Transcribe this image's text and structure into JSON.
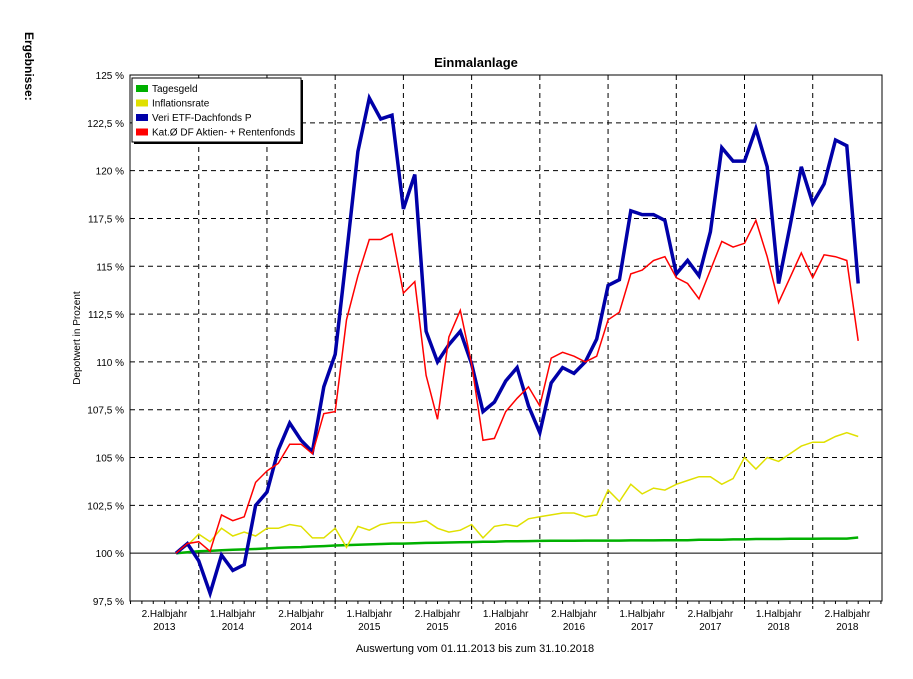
{
  "side_label": "Ergebnisse:",
  "chart_data": {
    "type": "line",
    "title": "Einmalanlage",
    "xlabel": "Auswertung vom 01.11.2013 bis zum 31.10.2018",
    "ylabel": "Depotwert in Prozent",
    "ylim": [
      97.5,
      125
    ],
    "yticks": [
      97.5,
      100,
      102.5,
      105,
      107.5,
      110,
      112.5,
      115,
      117.5,
      120,
      122.5,
      125
    ],
    "ytick_labels": [
      "97,5 %",
      "100 %",
      "102,5 %",
      "105 %",
      "107,5 %",
      "110 %",
      "112,5 %",
      "115 %",
      "117,5 %",
      "120 %",
      "122,5 %",
      "125 %"
    ],
    "x_period_labels": [
      {
        "line1": "2.Halbjahr",
        "line2": "2013"
      },
      {
        "line1": "1.Halbjahr",
        "line2": "2014"
      },
      {
        "line1": "2.Halbjahr",
        "line2": "2014"
      },
      {
        "line1": "1.Halbjahr",
        "line2": "2015"
      },
      {
        "line1": "2.Halbjahr",
        "line2": "2015"
      },
      {
        "line1": "1.Halbjahr",
        "line2": "2016"
      },
      {
        "line1": "2.Halbjahr",
        "line2": "2016"
      },
      {
        "line1": "1.Halbjahr",
        "line2": "2017"
      },
      {
        "line1": "2.Halbjahr",
        "line2": "2017"
      },
      {
        "line1": "1.Halbjahr",
        "line2": "2018"
      },
      {
        "line1": "2.Halbjahr",
        "line2": "2018"
      }
    ],
    "grid": true,
    "legend_position": "top-left",
    "x_unit": "month index from Nov 2013",
    "series": [
      {
        "name": "Tagesgeld",
        "color": "#00b000",
        "width": 2.5,
        "values": [
          100,
          100.05,
          100.1,
          100.12,
          100.15,
          100.18,
          100.2,
          100.22,
          100.25,
          100.28,
          100.3,
          100.32,
          100.35,
          100.37,
          100.4,
          100.42,
          100.44,
          100.46,
          100.48,
          100.5,
          100.5,
          100.52,
          100.54,
          100.55,
          100.56,
          100.57,
          100.58,
          100.6,
          100.6,
          100.62,
          100.62,
          100.63,
          100.64,
          100.65,
          100.65,
          100.65,
          100.66,
          100.66,
          100.66,
          100.66,
          100.67,
          100.67,
          100.67,
          100.68,
          100.68,
          100.68,
          100.7,
          100.7,
          100.7,
          100.72,
          100.72,
          100.74,
          100.74,
          100.74,
          100.75,
          100.75,
          100.75,
          100.76,
          100.76,
          100.76,
          100.82
        ]
      },
      {
        "name": "Inflationsrate",
        "color": "#e0e000",
        "width": 1.5,
        "values": [
          100,
          100.4,
          101.0,
          100.6,
          101.3,
          100.9,
          101.1,
          100.9,
          101.3,
          101.3,
          101.5,
          101.4,
          100.8,
          100.8,
          101.3,
          100.3,
          101.4,
          101.2,
          101.5,
          101.6,
          101.6,
          101.6,
          101.7,
          101.3,
          101.1,
          101.2,
          101.5,
          100.8,
          101.4,
          101.5,
          101.4,
          101.8,
          101.9,
          102.0,
          102.1,
          102.1,
          101.9,
          102.0,
          103.3,
          102.7,
          103.6,
          103.1,
          103.4,
          103.3,
          103.6,
          103.8,
          104.0,
          104.0,
          103.6,
          103.9,
          105.0,
          104.4,
          105.0,
          104.8,
          105.2,
          105.6,
          105.8,
          105.8,
          106.1,
          106.3,
          106.1
        ]
      },
      {
        "name": "Veri ETF-Dachfonds P",
        "color": "#0000a8",
        "width": 3.5,
        "values": [
          100,
          100.5,
          99.6,
          97.9,
          99.9,
          99.1,
          99.4,
          102.5,
          103.2,
          105.4,
          106.8,
          105.9,
          105.3,
          108.7,
          110.4,
          115.6,
          121.0,
          123.8,
          122.7,
          122.9,
          118.0,
          119.8,
          111.6,
          110.0,
          110.9,
          111.6,
          109.9,
          107.4,
          107.9,
          109.0,
          109.7,
          107.7,
          106.3,
          108.9,
          109.7,
          109.4,
          110.0,
          111.2,
          114.0,
          114.3,
          117.9,
          117.7,
          117.7,
          117.4,
          114.6,
          115.3,
          114.5,
          116.8,
          121.2,
          120.5,
          120.5,
          122.2,
          120.2,
          114.1,
          117.1,
          120.2,
          118.3,
          119.3,
          121.6,
          121.3,
          114.1
        ]
      },
      {
        "name": "Kat.Ø DF Aktien- + Rentenfonds",
        "color": "#ff0000",
        "width": 1.5,
        "values": [
          100,
          100.5,
          100.6,
          100.1,
          102.0,
          101.7,
          101.9,
          103.7,
          104.3,
          104.7,
          105.7,
          105.7,
          105.2,
          107.3,
          107.4,
          112.2,
          114.5,
          116.4,
          116.4,
          116.7,
          113.6,
          114.2,
          109.3,
          107.0,
          111.3,
          112.7,
          109.9,
          105.9,
          106.0,
          107.4,
          108.1,
          108.7,
          107.7,
          110.2,
          110.5,
          110.3,
          110.0,
          110.3,
          112.2,
          112.6,
          114.6,
          114.8,
          115.3,
          115.5,
          114.4,
          114.1,
          113.3,
          114.8,
          116.3,
          116.0,
          116.2,
          117.4,
          115.5,
          113.1,
          114.4,
          115.7,
          114.4,
          115.6,
          115.5,
          115.3,
          111.1
        ]
      }
    ]
  }
}
